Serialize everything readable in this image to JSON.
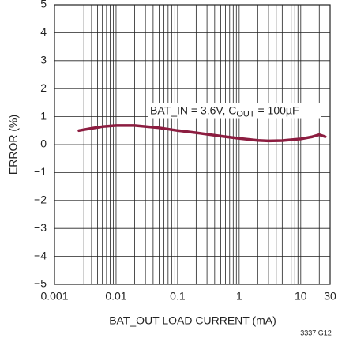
{
  "chart_data": {
    "type": "line",
    "xlabel": "BAT_OUT LOAD CURRENT (mA)",
    "ylabel": "ERROR (%)",
    "annotation": {
      "prefix": "BAT_IN = 3.6V,  C",
      "sub": "OUT",
      "suffix": " = 100µF"
    },
    "figure_id": "3337 G12",
    "xscale": "log",
    "x": [
      0.0025,
      0.004,
      0.006,
      0.01,
      0.02,
      0.05,
      0.1,
      0.2,
      0.5,
      1,
      2,
      3,
      5,
      10,
      15,
      20,
      25
    ],
    "series": [
      {
        "color": "#8c1d40",
        "values": [
          0.5,
          0.58,
          0.64,
          0.68,
          0.68,
          0.6,
          0.5,
          0.42,
          0.3,
          0.22,
          0.15,
          0.13,
          0.14,
          0.2,
          0.27,
          0.35,
          0.28
        ]
      }
    ],
    "xlim": [
      0.001,
      30
    ],
    "xticks": [
      0.001,
      0.01,
      0.1,
      1,
      10,
      30
    ],
    "xminorticks": [
      0.002,
      0.003,
      0.004,
      0.005,
      0.006,
      0.007,
      0.008,
      0.009,
      0.02,
      0.03,
      0.04,
      0.05,
      0.06,
      0.07,
      0.08,
      0.09,
      0.2,
      0.3,
      0.4,
      0.5,
      0.6,
      0.7,
      0.8,
      0.9,
      2,
      3,
      4,
      5,
      6,
      7,
      8,
      9,
      20
    ],
    "ylim": [
      -5,
      5
    ],
    "yticks": [
      {
        "value": -5,
        "label": "−5"
      },
      {
        "value": -4,
        "label": "−4"
      },
      {
        "value": -3,
        "label": "−3"
      },
      {
        "value": -2,
        "label": "−2"
      },
      {
        "value": -1,
        "label": "−1"
      },
      0,
      1,
      2,
      3,
      4,
      5
    ],
    "grid": true
  }
}
